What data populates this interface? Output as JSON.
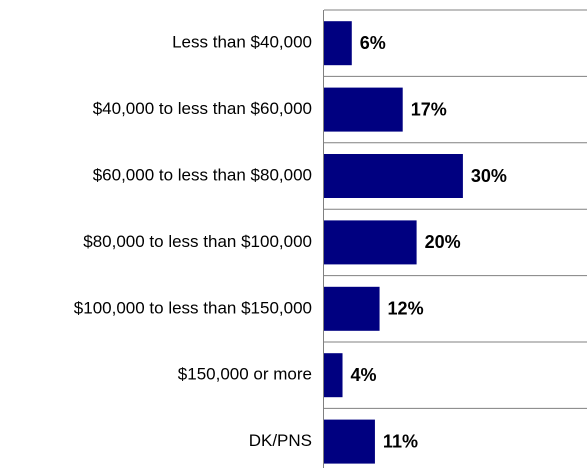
{
  "chart_data": {
    "type": "bar",
    "orientation": "horizontal",
    "categories": [
      "Less than $40,000",
      "$40,000 to less than $60,000",
      "$60,000 to less than $80,000",
      "$80,000 to less than $100,000",
      "$100,000 to less than $150,000",
      "$150,000 or more",
      "DK/PNS"
    ],
    "values": [
      6,
      17,
      30,
      20,
      12,
      4,
      11
    ],
    "value_labels": [
      "6%",
      "17%",
      "30%",
      "20%",
      "12%",
      "4%",
      "11%"
    ],
    "color": "#000080"
  }
}
